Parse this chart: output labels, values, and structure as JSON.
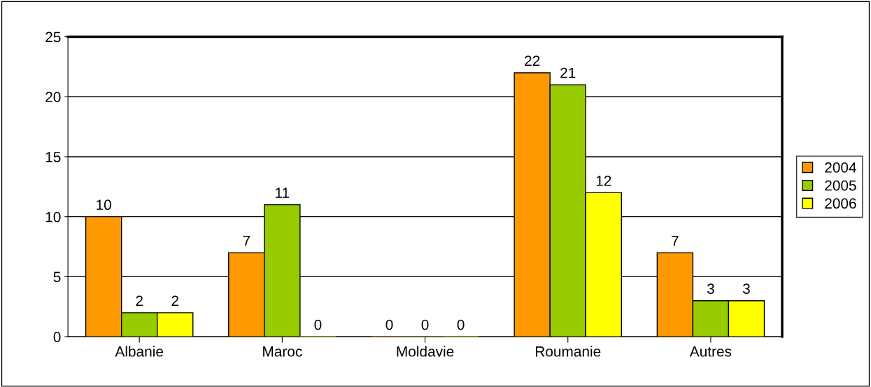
{
  "chart_data": {
    "type": "bar",
    "categories": [
      "Albanie",
      "Maroc",
      "Moldavie",
      "Roumanie",
      "Autres"
    ],
    "series": [
      {
        "name": "2004",
        "color": "#ff9900",
        "values": [
          10,
          7,
          0,
          22,
          7
        ]
      },
      {
        "name": "2005",
        "color": "#99cc00",
        "values": [
          2,
          11,
          0,
          21,
          3
        ]
      },
      {
        "name": "2006",
        "color": "#ffff00",
        "values": [
          2,
          0,
          0,
          12,
          3
        ]
      }
    ],
    "ylim": [
      0,
      25
    ],
    "yticks": [
      0,
      5,
      10,
      15,
      20,
      25
    ],
    "grid": "y",
    "legend": "right",
    "data_labels": true
  }
}
